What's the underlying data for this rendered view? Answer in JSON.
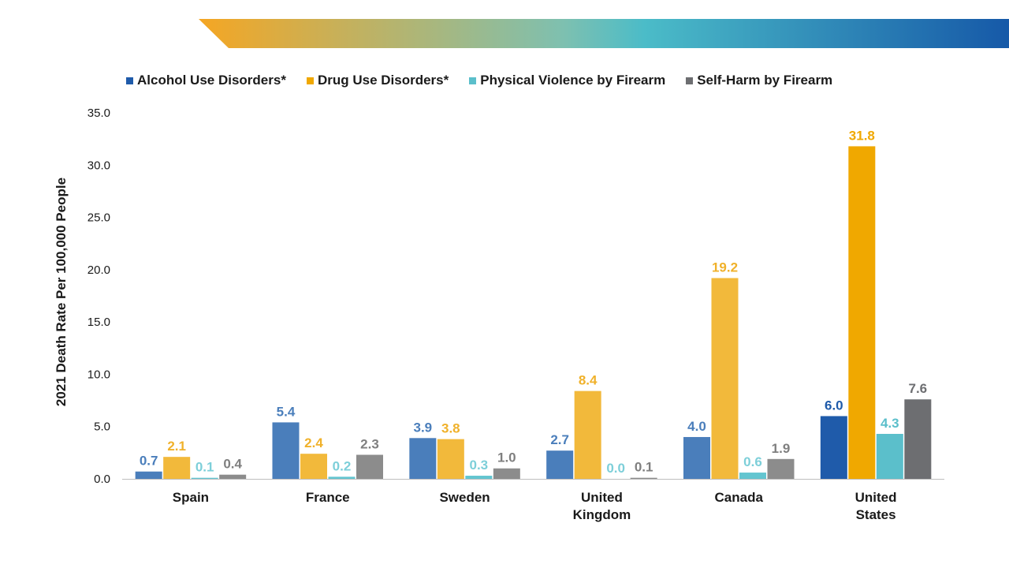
{
  "chart_data": {
    "type": "bar",
    "title": "",
    "ylabel": "2021 Death Rate Per 100,000 People",
    "xlabel": "",
    "ylim": [
      0,
      35
    ],
    "yticks": [
      "0.0",
      "5.0",
      "10.0",
      "15.0",
      "20.0",
      "25.0",
      "30.0",
      "35.0"
    ],
    "ytick_values": [
      0,
      5,
      10,
      15,
      20,
      25,
      30,
      35
    ],
    "grid": false,
    "legend_position": "top",
    "categories": [
      [
        "Spain"
      ],
      [
        "France"
      ],
      [
        "Sweden"
      ],
      [
        "United",
        "Kingdom"
      ],
      [
        "Canada"
      ],
      [
        "United",
        "States"
      ]
    ],
    "series": [
      {
        "name": "Alcohol Use Disorders*",
        "color": "#4A7EBB",
        "label_color": "#4A7EBB",
        "values": [
          0.7,
          5.4,
          3.9,
          2.7,
          4.0,
          6.0
        ],
        "labels": [
          "0.7",
          "5.4",
          "3.9",
          "2.7",
          "4.0",
          "6.0"
        ],
        "highlight_color": "#1F5BAA"
      },
      {
        "name": "Drug Use Disorders*",
        "color": "#F2B93B",
        "label_color": "#F0B12A",
        "values": [
          2.1,
          2.4,
          3.8,
          8.4,
          19.2,
          31.8
        ],
        "labels": [
          "2.1",
          "2.4",
          "3.8",
          "8.4",
          "19.2",
          "31.8"
        ],
        "highlight_color": "#F0A800"
      },
      {
        "name": "Physical Violence by Firearm",
        "color": "#63C5D0",
        "label_color": "#7DCFD9",
        "values": [
          0.1,
          0.2,
          0.3,
          0.0,
          0.6,
          4.3
        ],
        "labels": [
          "0.1",
          "0.2",
          "0.3",
          "0.0",
          "0.6",
          "4.3"
        ],
        "highlight_color": "#5BBFCB"
      },
      {
        "name": "Self-Harm by Firearm",
        "color": "#8C8C8C",
        "label_color": "#7F7F7F",
        "values": [
          0.4,
          2.3,
          1.0,
          0.1,
          1.9,
          7.6
        ],
        "labels": [
          "0.4",
          "2.3",
          "1.0",
          "0.1",
          "1.9",
          "7.6"
        ],
        "highlight_color": "#6D6E71"
      }
    ],
    "highlight_category_index": 5
  }
}
